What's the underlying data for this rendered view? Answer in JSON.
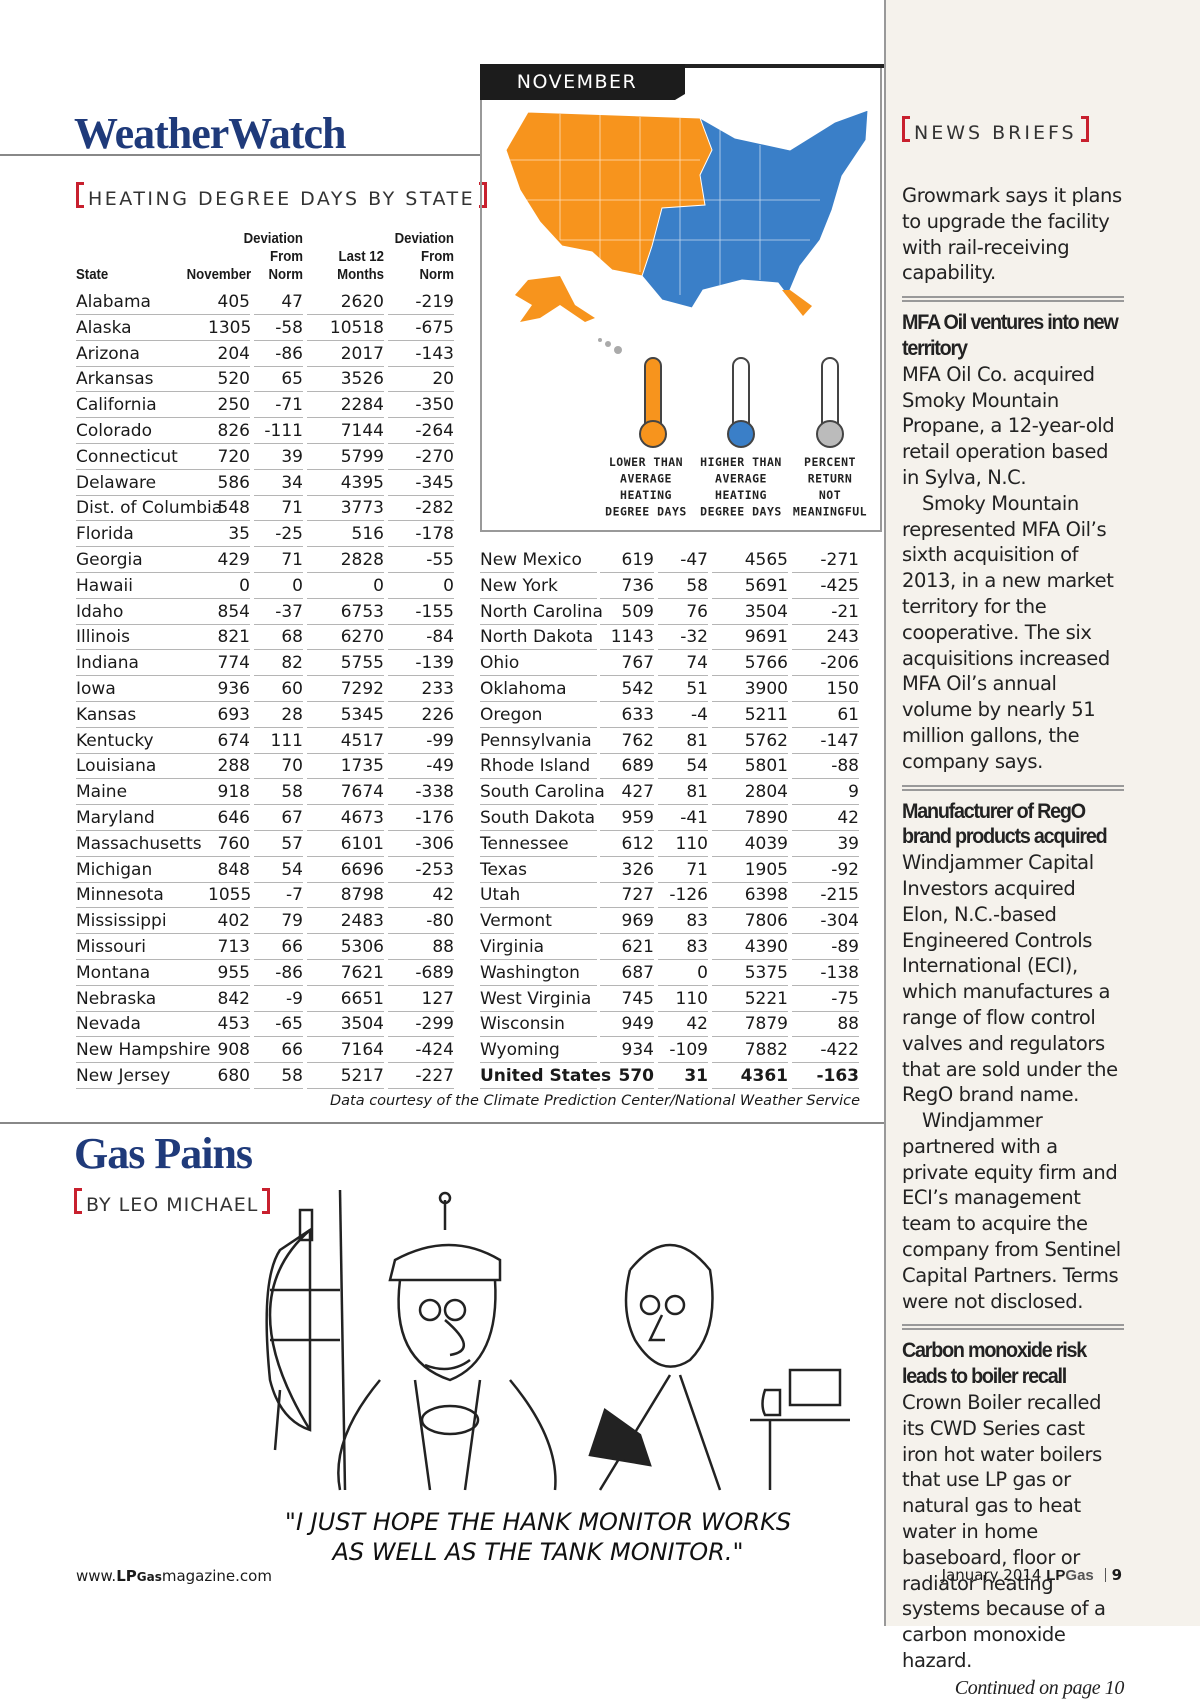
{
  "header": {
    "title": "WeatherWatch"
  },
  "table": {
    "heading": "HEATING DEGREE DAYS BY STATE",
    "columns": [
      [
        "State"
      ],
      [
        "November"
      ],
      [
        "Deviation",
        "From",
        "Norm"
      ],
      [
        "Last 12",
        "Months"
      ],
      [
        "Deviation",
        "From",
        "Norm"
      ]
    ],
    "rows": [
      [
        "Alabama",
        405,
        47,
        2620,
        -219
      ],
      [
        "Alaska",
        1305,
        -58,
        10518,
        -675
      ],
      [
        "Arizona",
        204,
        -86,
        2017,
        -143
      ],
      [
        "Arkansas",
        520,
        65,
        3526,
        20
      ],
      [
        "California",
        250,
        -71,
        2284,
        -350
      ],
      [
        "Colorado",
        826,
        -111,
        7144,
        -264
      ],
      [
        "Connecticut",
        720,
        39,
        5799,
        -270
      ],
      [
        "Delaware",
        586,
        34,
        4395,
        -345
      ],
      [
        "Dist. of Columbia",
        548,
        71,
        3773,
        -282
      ],
      [
        "Florida",
        35,
        -25,
        516,
        -178
      ],
      [
        "Georgia",
        429,
        71,
        2828,
        -55
      ],
      [
        "Hawaii",
        0,
        0,
        0,
        0
      ],
      [
        "Idaho",
        854,
        -37,
        6753,
        -155
      ],
      [
        "Illinois",
        821,
        68,
        6270,
        -84
      ],
      [
        "Indiana",
        774,
        82,
        5755,
        -139
      ],
      [
        "Iowa",
        936,
        60,
        7292,
        233
      ],
      [
        "Kansas",
        693,
        28,
        5345,
        226
      ],
      [
        "Kentucky",
        674,
        111,
        4517,
        -99
      ],
      [
        "Louisiana",
        288,
        70,
        1735,
        -49
      ],
      [
        "Maine",
        918,
        58,
        7674,
        -338
      ],
      [
        "Maryland",
        646,
        67,
        4673,
        -176
      ],
      [
        "Massachusetts",
        760,
        57,
        6101,
        -306
      ],
      [
        "Michigan",
        848,
        54,
        6696,
        -253
      ],
      [
        "Minnesota",
        1055,
        -7,
        8798,
        42
      ],
      [
        "Mississippi",
        402,
        79,
        2483,
        -80
      ],
      [
        "Missouri",
        713,
        66,
        5306,
        88
      ],
      [
        "Montana",
        955,
        -86,
        7621,
        -689
      ],
      [
        "Nebraska",
        842,
        -9,
        6651,
        127
      ],
      [
        "Nevada",
        453,
        -65,
        3504,
        -299
      ],
      [
        "New Hampshire",
        908,
        66,
        7164,
        -424
      ],
      [
        "New Jersey",
        680,
        58,
        5217,
        -227
      ],
      [
        "New Mexico",
        619,
        -47,
        4565,
        -271
      ],
      [
        "New York",
        736,
        58,
        5691,
        -425
      ],
      [
        "North Carolina",
        509,
        76,
        3504,
        -21
      ],
      [
        "North Dakota",
        1143,
        -32,
        9691,
        243
      ],
      [
        "Ohio",
        767,
        74,
        5766,
        -206
      ],
      [
        "Oklahoma",
        542,
        51,
        3900,
        150
      ],
      [
        "Oregon",
        633,
        -4,
        5211,
        61
      ],
      [
        "Pennsylvania",
        762,
        81,
        5762,
        -147
      ],
      [
        "Rhode Island",
        689,
        54,
        5801,
        -88
      ],
      [
        "South Carolina",
        427,
        81,
        2804,
        9
      ],
      [
        "South Dakota",
        959,
        -41,
        7890,
        42
      ],
      [
        "Tennessee",
        612,
        110,
        4039,
        39
      ],
      [
        "Texas",
        326,
        71,
        1905,
        -92
      ],
      [
        "Utah",
        727,
        -126,
        6398,
        -215
      ],
      [
        "Vermont",
        969,
        83,
        7806,
        -304
      ],
      [
        "Virginia",
        621,
        83,
        4390,
        -89
      ],
      [
        "Washington",
        687,
        0,
        5375,
        -138
      ],
      [
        "West Virginia",
        745,
        110,
        5221,
        -75
      ],
      [
        "Wisconsin",
        949,
        42,
        7879,
        88
      ],
      [
        "Wyoming",
        934,
        -109,
        7882,
        -422
      ]
    ],
    "total": [
      "United States",
      570,
      31,
      4361,
      -163
    ],
    "source": "Data courtesy of the Climate Prediction Center/National Weather Service"
  },
  "map": {
    "month": "NOVEMBER",
    "legend": [
      [
        "LOWER THAN",
        "AVERAGE",
        "HEATING",
        "DEGREE DAYS"
      ],
      [
        "HIGHER THAN",
        "AVERAGE",
        "HEATING",
        "DEGREE DAYS"
      ],
      [
        "PERCENT",
        "RETURN",
        "NOT",
        "MEANINGFUL"
      ]
    ]
  },
  "cartoon": {
    "title": "Gas Pains",
    "byline": "BY LEO MICHAEL",
    "caption": [
      "\"I JUST HOPE THE HANK MONITOR WORKS",
      "AS WELL AS THE TANK MONITOR.\""
    ]
  },
  "sidebar": {
    "heading": "NEWS BRIEFS",
    "intro": "Growmark says it plans to upgrade the facility with rail-receiving capability.",
    "articles": [
      {
        "headline": "MFA Oil ventures into new territory",
        "paragraphs": [
          "MFA Oil Co. acquired Smoky Mountain Propane, a 12-year-old retail operation based in Sylva, N.C.",
          "Smoky Mountain represented MFA Oil’s sixth acquisition of 2013, in a new market territory for the cooperative. The six acquisitions increased MFA Oil’s annual volume by nearly 51 million gallons, the company says."
        ]
      },
      {
        "headline": "Manufacturer of RegO brand products acquired",
        "paragraphs": [
          "Windjammer Capital Investors acquired Elon, N.C.-based Engineered Controls International (ECI), which manufactures a range of flow control valves and regulators that are sold under the RegO brand name.",
          "Windjammer partnered with a private equity firm and ECI’s management team to acquire the company from Sentinel Capital Partners. Terms were not disclosed."
        ]
      },
      {
        "headline": "Carbon monoxide risk leads to boiler recall",
        "paragraphs": [
          "Crown Boiler recalled its CWD Series cast iron hot water boilers that use LP gas or natural gas to heat water in home baseboard, floor or radiator heating systems because of a carbon monoxide hazard."
        ]
      }
    ],
    "continued": "Continued on page 10"
  },
  "footer": {
    "url": [
      "www.",
      "LP",
      "Gas",
      "magazine.com"
    ],
    "date": "January 2014",
    "brand": [
      "LP",
      "Gas"
    ],
    "page": "9"
  }
}
